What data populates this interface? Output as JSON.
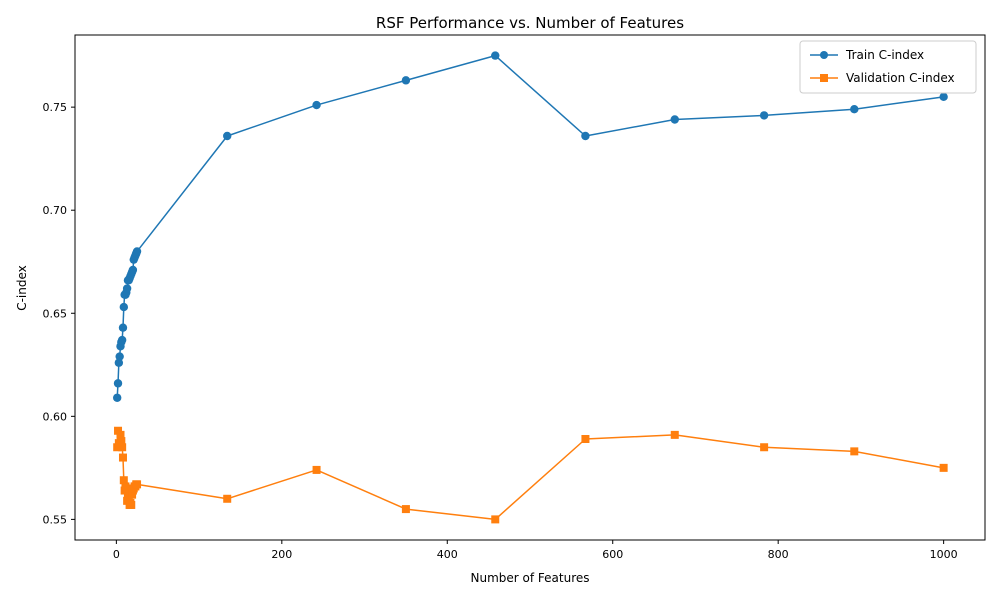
{
  "chart_data": {
    "type": "line",
    "title": "RSF Performance vs. Number of Features",
    "xlabel": "Number of Features",
    "ylabel": "C-index",
    "xlim": [
      -50,
      1050
    ],
    "ylim": [
      0.54,
      0.785
    ],
    "xticks": [
      0,
      200,
      400,
      600,
      800,
      1000
    ],
    "yticks": [
      0.55,
      0.6,
      0.65,
      0.7,
      0.75
    ],
    "ytick_labels": [
      "0.55",
      "0.60",
      "0.65",
      "0.70",
      "0.75"
    ],
    "grid": false,
    "legend_position": "top-right",
    "series": [
      {
        "name": "Train C-index",
        "color": "#1f77b4",
        "marker": "circle",
        "x": [
          1,
          2,
          3,
          4,
          5,
          6,
          7,
          8,
          9,
          10,
          11,
          12,
          13,
          14,
          15,
          16,
          17,
          18,
          19,
          20,
          21,
          22,
          23,
          24,
          25,
          134,
          242,
          350,
          458,
          567,
          675,
          783,
          892,
          1000
        ],
        "y": [
          0.609,
          0.616,
          0.626,
          0.629,
          0.634,
          0.636,
          0.637,
          0.643,
          0.653,
          0.659,
          0.659,
          0.66,
          0.662,
          0.666,
          0.666,
          0.667,
          0.668,
          0.669,
          0.67,
          0.671,
          0.676,
          0.677,
          0.678,
          0.679,
          0.68,
          0.736,
          0.751,
          0.763,
          0.775,
          0.736,
          0.744,
          0.746,
          0.749,
          0.755
        ]
      },
      {
        "name": "Validation C-index",
        "color": "#ff7f0e",
        "marker": "square",
        "x": [
          1,
          2,
          3,
          4,
          5,
          6,
          7,
          8,
          9,
          10,
          11,
          12,
          13,
          14,
          15,
          16,
          17,
          18,
          19,
          20,
          21,
          22,
          23,
          24,
          25,
          134,
          242,
          350,
          458,
          567,
          675,
          783,
          892,
          1000
        ],
        "y": [
          0.585,
          0.593,
          0.587,
          0.586,
          0.591,
          0.588,
          0.585,
          0.58,
          0.569,
          0.564,
          0.566,
          0.565,
          0.559,
          0.561,
          0.56,
          0.557,
          0.558,
          0.557,
          0.562,
          0.564,
          0.565,
          0.566,
          0.566,
          0.567,
          0.567,
          0.56,
          0.574,
          0.555,
          0.55,
          0.589,
          0.591,
          0.585,
          0.583,
          0.575
        ]
      }
    ]
  }
}
